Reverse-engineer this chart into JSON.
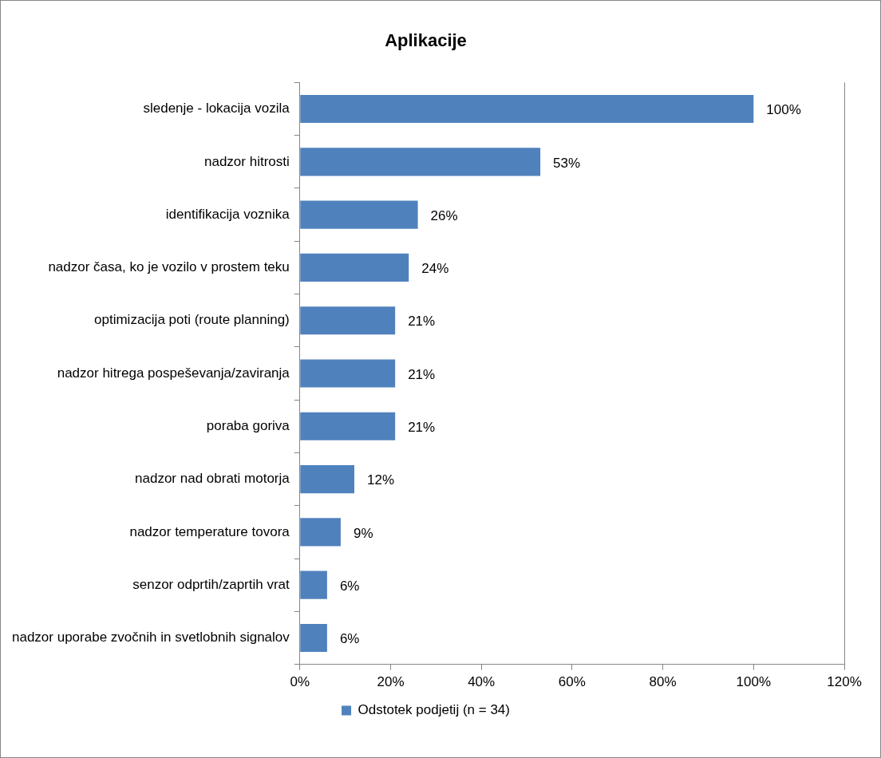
{
  "chart_data": {
    "type": "bar",
    "orientation": "horizontal",
    "title": "Aplikacije",
    "categories": [
      "sledenje - lokacija vozila",
      "nadzor hitrosti",
      "identifikacija voznika",
      "nadzor časa, ko je vozilo v prostem teku",
      "optimizacija poti (route planning)",
      "nadzor hitrega pospeševanja/zaviranja",
      "poraba goriva",
      "nadzor nad obrati motorja",
      "nadzor temperature tovora",
      "senzor odprtih/zaprtih vrat",
      "nadzor uporabe zvočnih in svetlobnih signalov"
    ],
    "series": [
      {
        "name": "Odstotek podjetij (n = 34)",
        "color": "#4f81bd",
        "values": [
          100,
          53,
          26,
          24,
          21,
          21,
          21,
          12,
          9,
          6,
          6
        ],
        "value_labels": [
          "100%",
          "53%",
          "26%",
          "24%",
          "21%",
          "21%",
          "21%",
          "12%",
          "9%",
          "6%",
          "6%"
        ]
      }
    ],
    "xlim": [
      0,
      120
    ],
    "xticks": [
      {
        "value": 0,
        "label": "0%"
      },
      {
        "value": 20,
        "label": "20%"
      },
      {
        "value": 40,
        "label": "40%"
      },
      {
        "value": 60,
        "label": "60%"
      },
      {
        "value": 80,
        "label": "80%"
      },
      {
        "value": 100,
        "label": "100%"
      },
      {
        "value": 120,
        "label": "120%"
      }
    ],
    "grid": false,
    "legend": "bottom"
  }
}
